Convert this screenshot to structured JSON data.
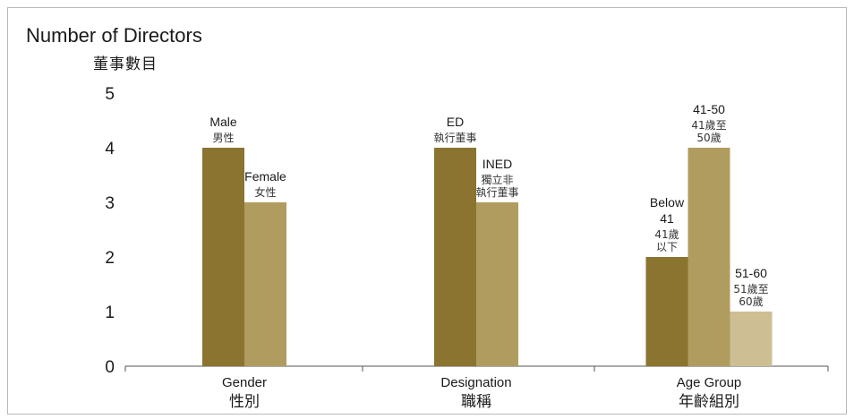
{
  "chart_data": {
    "type": "bar",
    "title": "Number of Directors",
    "subtitle": "董事數目",
    "ylim": [
      0,
      5
    ],
    "yticks": [
      "0",
      "1",
      "2",
      "3",
      "4",
      "5"
    ],
    "grid": false,
    "legend": "none",
    "groups": [
      {
        "label": "Gender",
        "label_zh": "性別",
        "bars": [
          {
            "label": "Male",
            "label_zh": "男性",
            "value": 4,
            "color": "#8b7330"
          },
          {
            "label": "Female",
            "label_zh": "女性",
            "value": 3,
            "color": "#b19c5f"
          }
        ]
      },
      {
        "label": "Designation",
        "label_zh": "職稱",
        "bars": [
          {
            "label": "ED",
            "label_zh": "執行董事",
            "value": 4,
            "color": "#8b7330"
          },
          {
            "label": "INED",
            "label_zh": "獨立非執行董事",
            "value": 3,
            "color": "#b19c5f"
          }
        ]
      },
      {
        "label": "Age Group",
        "label_zh": "年齡組別",
        "bars": [
          {
            "label": "Below 41",
            "label_zh": "41歲以下",
            "value": 2,
            "color": "#8b7330"
          },
          {
            "label": "41-50",
            "label_zh": "41歲至50歲",
            "value": 4,
            "color": "#b19c5f"
          },
          {
            "label": "51-60",
            "label_zh": "51歲至60歲",
            "value": 1,
            "color": "#cdbf93"
          }
        ]
      }
    ]
  }
}
